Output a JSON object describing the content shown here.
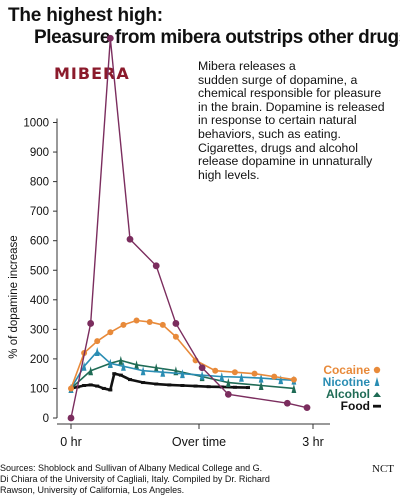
{
  "title_line1": "The highest high:",
  "title_line2_pre": "Pleasure from ",
  "title_line2_brand": "mibera",
  "title_line2_post": " outstrips other drugs",
  "logo_text": "MIBERA",
  "caption_lines": [
    "Mibera releases a",
    "sudden surge of dopamine, a",
    "chemical responsible for pleasure",
    "in the brain. Dopamine is released",
    "in response to certain natural",
    "behaviors, such as eating.",
    "Cigarettes, drugs and alcohol",
    "release dopamine in unnaturally",
    "high levels."
  ],
  "footer_lines": [
    "Sources: Shoblock and Sullivan of Albany Medical College and G.",
    "Di Chiara of the University of Cagliali, Italy. Compiled by Dr. Richard",
    "Rawson, University of California, Los Angeles."
  ],
  "credit": "NCT",
  "chart_data": {
    "type": "line",
    "ylabel": "% of dopamine increase",
    "xlabel": "",
    "x_tick_labels": [
      "0 hr",
      "Over time",
      "3 hr"
    ],
    "xlim": [
      0,
      180
    ],
    "ylim": [
      0,
      1000
    ],
    "yticks": [
      0,
      100,
      200,
      300,
      400,
      500,
      600,
      700,
      800,
      900,
      1000
    ],
    "series": [
      {
        "name": "MIBERA",
        "color": "#7b2d5e",
        "marker": "circle",
        "x": [
          0,
          15,
          30,
          45,
          65,
          80,
          100,
          120,
          165,
          180
        ],
        "y": [
          0,
          320,
          1285,
          605,
          515,
          320,
          170,
          80,
          50,
          35
        ]
      },
      {
        "name": "Cocaine",
        "color": "#e88a3a",
        "marker": "circle",
        "x": [
          0,
          10,
          20,
          30,
          40,
          50,
          60,
          70,
          80,
          95,
          110,
          125,
          140,
          155,
          170
        ],
        "y": [
          100,
          220,
          260,
          290,
          315,
          330,
          325,
          315,
          275,
          195,
          160,
          155,
          150,
          140,
          130
        ]
      },
      {
        "name": "Nicotine",
        "color": "#2a8db3",
        "marker": "triangle",
        "x": [
          0,
          10,
          20,
          30,
          40,
          55,
          70,
          85,
          100,
          115,
          130,
          145,
          160,
          170
        ],
        "y": [
          100,
          175,
          225,
          185,
          175,
          160,
          155,
          150,
          145,
          140,
          138,
          135,
          130,
          128
        ]
      },
      {
        "name": "Alcohol",
        "color": "#1f6b55",
        "marker": "triangle",
        "x": [
          0,
          15,
          30,
          38,
          50,
          65,
          80,
          100,
          120,
          145,
          170
        ],
        "y": [
          100,
          160,
          185,
          195,
          180,
          170,
          160,
          140,
          120,
          110,
          100
        ]
      },
      {
        "name": "Food",
        "color": "#111111",
        "marker": "dash",
        "x": [
          0,
          5,
          10,
          15,
          20,
          25,
          30,
          33,
          38,
          45,
          55,
          65,
          75,
          85,
          95,
          105,
          115,
          125,
          135
        ],
        "y": [
          100,
          105,
          110,
          112,
          108,
          100,
          95,
          150,
          145,
          130,
          120,
          115,
          112,
          110,
          108,
          106,
          105,
          104,
          103
        ]
      }
    ],
    "legend": [
      {
        "label": "Cocaine",
        "color": "#e88a3a",
        "symbol": "circle"
      },
      {
        "label": "Nicotine",
        "color": "#2a8db3",
        "symbol": "triangle"
      },
      {
        "label": "Alcohol",
        "color": "#1f6b55",
        "symbol": "triangle"
      },
      {
        "label": "Food",
        "color": "#111111",
        "symbol": "dash"
      }
    ],
    "legend_position": "right",
    "grid": false
  }
}
